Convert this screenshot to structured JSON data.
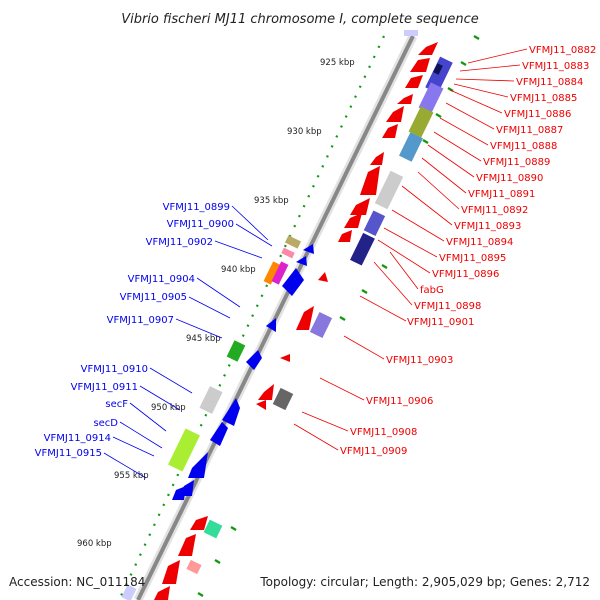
{
  "title": "Vibrio fischeri MJ11 chromosome I, complete sequence",
  "footer": {
    "accession": "Accession: NC_011184",
    "topology": "Topology: circular; Length: 2,905,029 bp; Genes: 2,712"
  },
  "colors": {
    "forward": "#ee0000",
    "reverse": "#0000ee",
    "backbone": "#888888",
    "ticks": "#119911"
  },
  "kbp_labels": [
    "925 kbp",
    "930 kbp",
    "935 kbp",
    "940 kbp",
    "945 kbp",
    "950 kbp",
    "955 kbp",
    "960 kbp"
  ],
  "right_labels": [
    "VFMJ11_0882",
    "VFMJ11_0883",
    "VFMJ11_0884",
    "VFMJ11_0885",
    "VFMJ11_0886",
    "VFMJ11_0887",
    "VFMJ11_0888",
    "VFMJ11_0889",
    "VFMJ11_0890",
    "VFMJ11_0891",
    "VFMJ11_0892",
    "VFMJ11_0893",
    "VFMJ11_0894",
    "VFMJ11_0895",
    "VFMJ11_0896",
    "fabG",
    "VFMJ11_0898",
    "VFMJ11_0901",
    "VFMJ11_0903",
    "VFMJ11_0906",
    "VFMJ11_0908",
    "VFMJ11_0909"
  ],
  "left_labels": [
    "VFMJ11_0899",
    "VFMJ11_0900",
    "VFMJ11_0902",
    "VFMJ11_0904",
    "VFMJ11_0905",
    "VFMJ11_0907",
    "VFMJ11_0910",
    "VFMJ11_0911",
    "secF",
    "secD",
    "VFMJ11_0914",
    "VFMJ11_0915"
  ]
}
